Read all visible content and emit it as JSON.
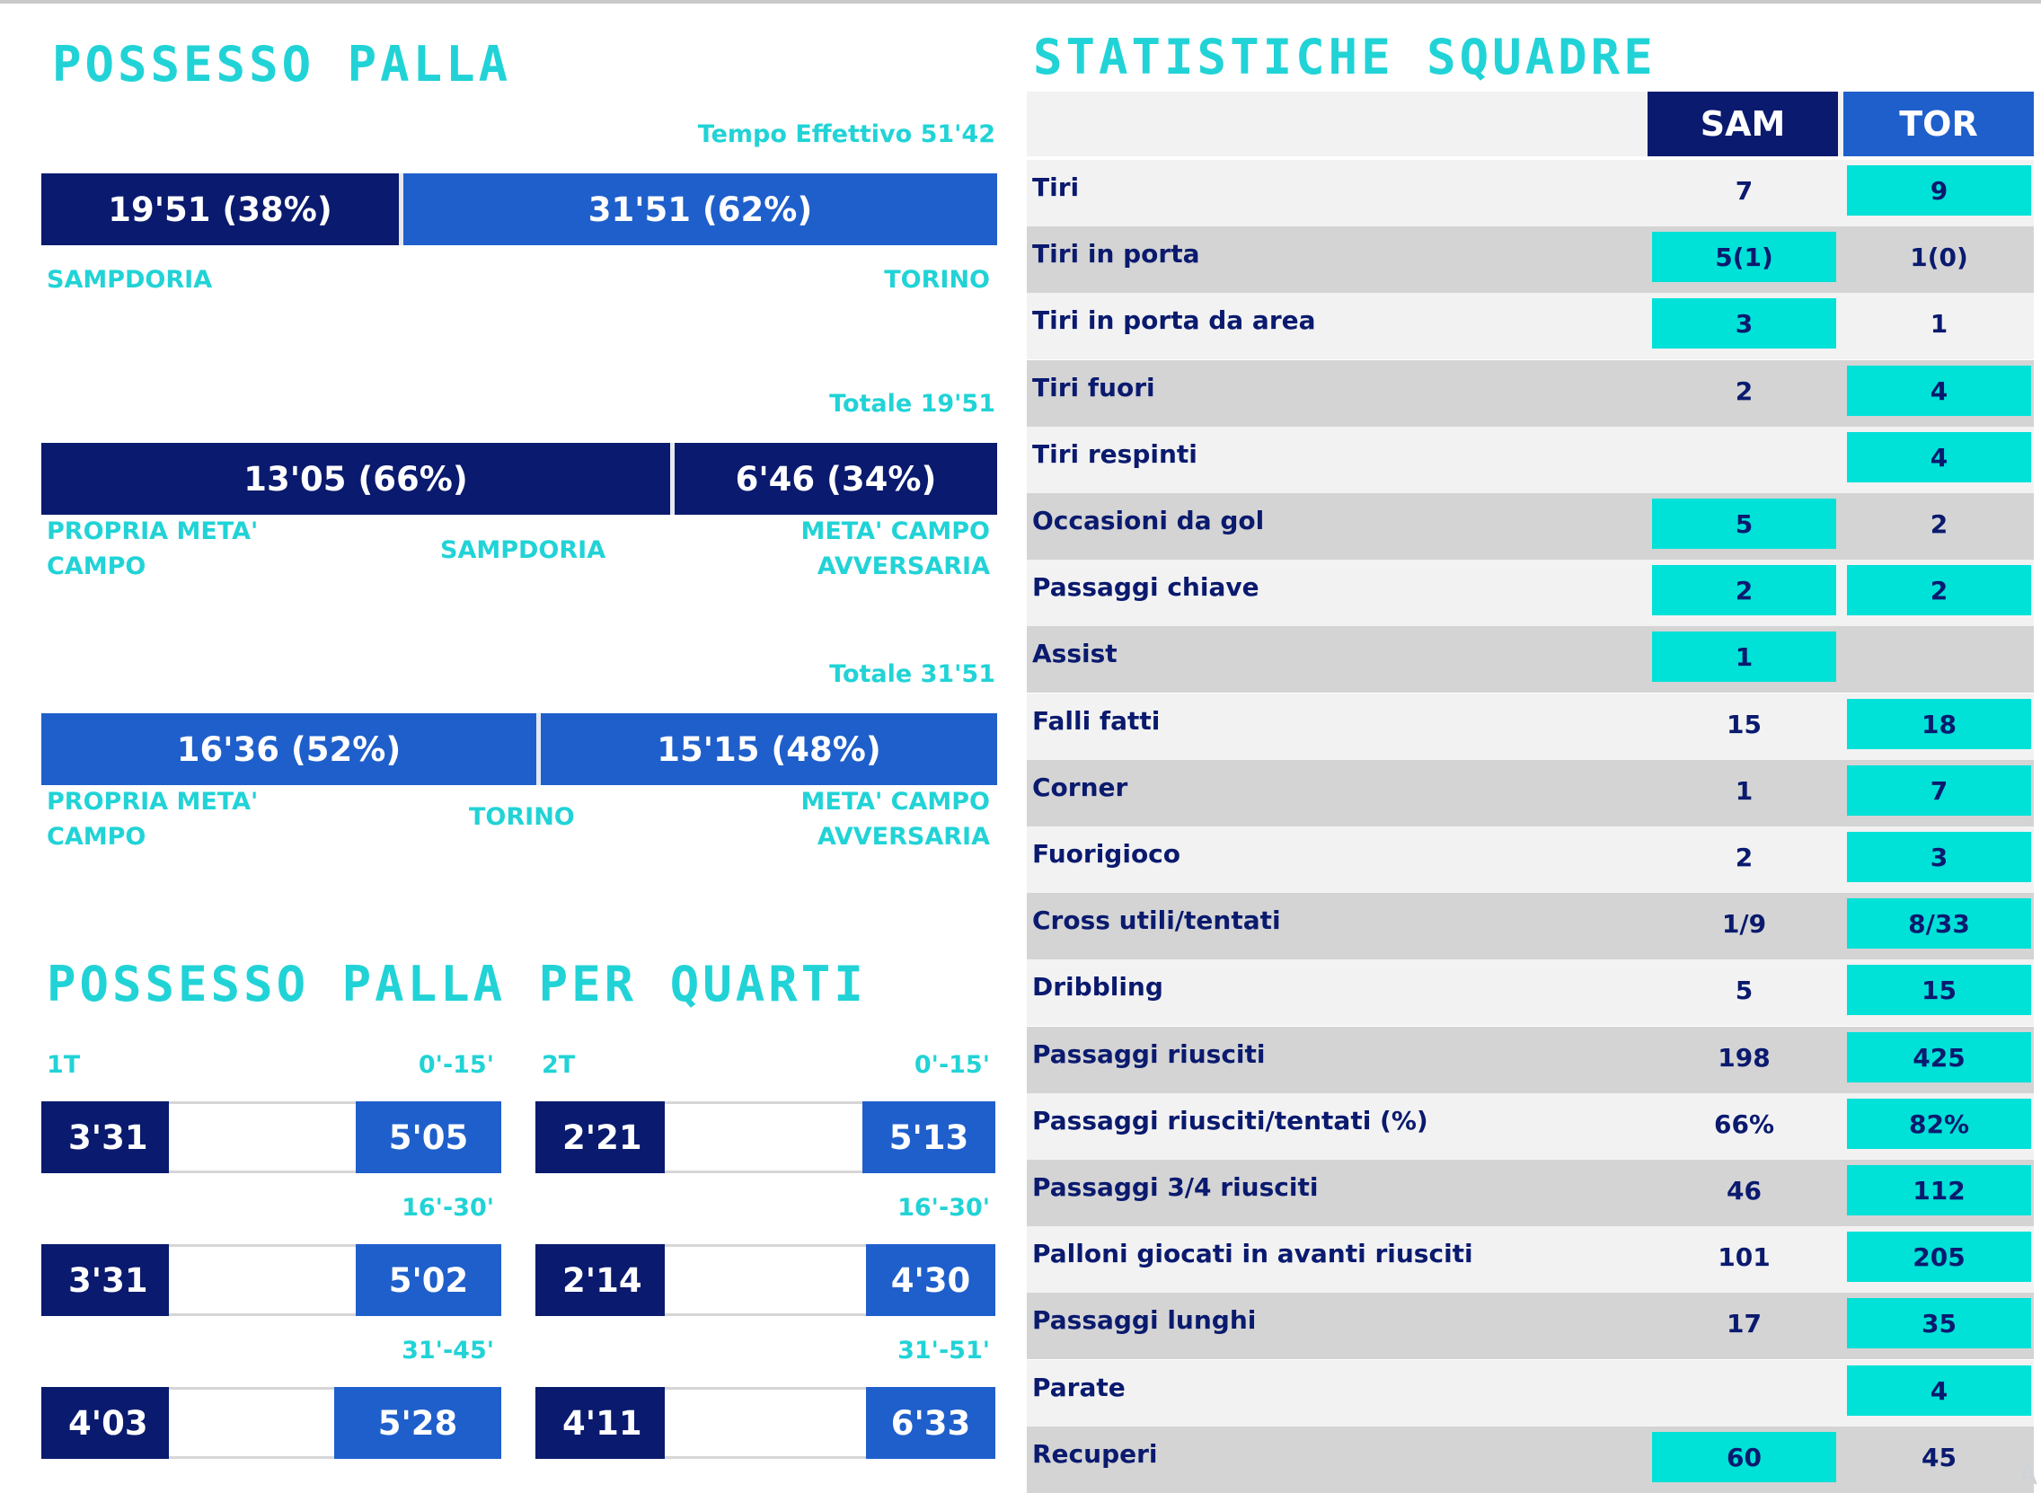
{
  "possesso": {
    "title": "POSSESSO PALLA",
    "tempo_effettivo": "Tempo Effettivo 51'42",
    "main_bar": {
      "sam_label": "19'51 (38%)",
      "sam_share": 0.38,
      "tor_label": "31'51 (62%)",
      "tor_share": 0.62
    },
    "team_left": "SAMPDORIA",
    "team_right": "TORINO",
    "sampdoria": {
      "total": "Totale 19'51",
      "own_label": "13'05 (66%)",
      "own_share": 0.66,
      "opp_label": "6'46 (34%)",
      "opp_share": 0.34,
      "own_text": "PROPRIA META'\nCAMPO",
      "team": "SAMPDORIA",
      "opp_text": "META' CAMPO\nAVVERSARIA"
    },
    "torino": {
      "total": "Totale 31'51",
      "own_label": "16'36 (52%)",
      "own_share": 0.52,
      "opp_label": "15'15 (48%)",
      "opp_share": 0.48,
      "own_text": "PROPRIA META'\nCAMPO",
      "team": "TORINO",
      "opp_text": "META' CAMPO\nAVVERSARIA"
    }
  },
  "quarti": {
    "title": "POSSESSO PALLA PER QUARTI",
    "first_half": {
      "label": "1T",
      "periods": [
        {
          "range": "0'-15'",
          "sam": "3'31",
          "tor": "5'05"
        },
        {
          "range": "16'-30'",
          "sam": "3'31",
          "tor": "5'02"
        },
        {
          "range": "31'-45'",
          "sam": "4'03",
          "tor": "5'28"
        }
      ]
    },
    "second_half": {
      "label": "2T",
      "periods": [
        {
          "range": "0'-15'",
          "sam": "2'21",
          "tor": "5'13"
        },
        {
          "range": "16'-30'",
          "sam": "2'14",
          "tor": "4'30"
        },
        {
          "range": "31'-51'",
          "sam": "4'11",
          "tor": "6'33"
        }
      ]
    }
  },
  "statistiche": {
    "title": "STATISTICHE SQUADRE",
    "col_sam": "SAM",
    "col_tor": "TOR",
    "rows": [
      {
        "label": "Tiri",
        "sam": "7",
        "tor": "9",
        "best": "tor"
      },
      {
        "label": "Tiri in porta",
        "sam": "5(1)",
        "tor": "1(0)",
        "best": "sam"
      },
      {
        "label": "Tiri in porta da area",
        "sam": "3",
        "tor": "1",
        "best": "sam"
      },
      {
        "label": "Tiri fuori",
        "sam": "2",
        "tor": "4",
        "best": "tor"
      },
      {
        "label": "Tiri respinti",
        "sam": "",
        "tor": "4",
        "best": "tor"
      },
      {
        "label": "Occasioni da gol",
        "sam": "5",
        "tor": "2",
        "best": "sam"
      },
      {
        "label": "Passaggi chiave",
        "sam": "2",
        "tor": "2",
        "best": "both"
      },
      {
        "label": "Assist",
        "sam": "1",
        "tor": "",
        "best": "sam"
      },
      {
        "label": "Falli fatti",
        "sam": "15",
        "tor": "18",
        "best": "tor"
      },
      {
        "label": "Corner",
        "sam": "1",
        "tor": "7",
        "best": "tor"
      },
      {
        "label": "Fuorigioco",
        "sam": "2",
        "tor": "3",
        "best": "tor"
      },
      {
        "label": "Cross utili/tentati",
        "sam": "1/9",
        "tor": "8/33",
        "best": "tor"
      },
      {
        "label": "Dribbling",
        "sam": "5",
        "tor": "15",
        "best": "tor"
      },
      {
        "label": "Passaggi riusciti",
        "sam": "198",
        "tor": "425",
        "best": "tor"
      },
      {
        "label": "Passaggi riusciti/tentati (%)",
        "sam": "66%",
        "tor": "82%",
        "best": "tor"
      },
      {
        "label": "Passaggi 3/4 riusciti",
        "sam": "46",
        "tor": "112",
        "best": "tor"
      },
      {
        "label": "Palloni giocati in avanti riusciti",
        "sam": "101",
        "tor": "205",
        "best": "tor"
      },
      {
        "label": "Passaggi lunghi",
        "sam": "17",
        "tor": "35",
        "best": "tor"
      },
      {
        "label": "Parate",
        "sam": "",
        "tor": "4",
        "best": "tor"
      },
      {
        "label": "Recuperi",
        "sam": "60",
        "tor": "45",
        "best": "sam"
      }
    ]
  },
  "colors": {
    "sam_dark": "#0a1a6e",
    "tor_blue": "#1f5fcb",
    "accent": "#21d3d6",
    "highlight": "#00e1d8"
  }
}
